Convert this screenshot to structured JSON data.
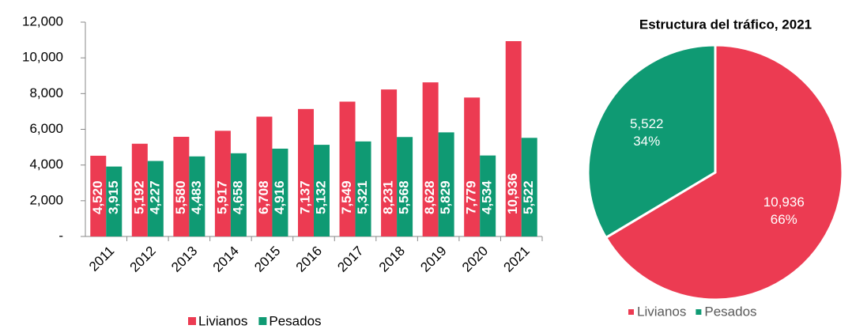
{
  "chart_data": [
    {
      "type": "bar",
      "categories": [
        "2011",
        "2012",
        "2013",
        "2014",
        "2015",
        "2016",
        "2017",
        "2018",
        "2019",
        "2020",
        "2021"
      ],
      "series": [
        {
          "name": "Livianos",
          "color": "#ec3b52",
          "values": [
            4520,
            5192,
            5580,
            5917,
            6708,
            7137,
            7549,
            8231,
            8628,
            7779,
            10936
          ],
          "value_labels": [
            "4,520",
            "5,192",
            "5,580",
            "5,917",
            "6,708",
            "7,137",
            "7,549",
            "8,231",
            "8,628",
            "7,779",
            "10,936"
          ]
        },
        {
          "name": "Pesados",
          "color": "#0f9a73",
          "values": [
            3915,
            4227,
            4483,
            4658,
            4916,
            5132,
            5321,
            5568,
            5829,
            4534,
            5522
          ],
          "value_labels": [
            "3,915",
            "4,227",
            "4,483",
            "4,658",
            "4,916",
            "5,132",
            "5,321",
            "5,568",
            "5,829",
            "4,534",
            "5,522"
          ]
        }
      ],
      "ylim": [
        0,
        12000
      ],
      "yticks": [
        {
          "value": 0,
          "label": "-"
        },
        {
          "value": 2000,
          "label": "2,000"
        },
        {
          "value": 4000,
          "label": "4,000"
        },
        {
          "value": 6000,
          "label": "6,000"
        },
        {
          "value": 8000,
          "label": "8,000"
        },
        {
          "value": 10000,
          "label": "10,000"
        },
        {
          "value": 12000,
          "label": "12,000"
        }
      ],
      "legend": "bottom"
    },
    {
      "type": "pie",
      "title": "Estructura del tráfico, 2021",
      "categories": [
        "Livianos",
        "Pesados"
      ],
      "values": [
        10936,
        5522
      ],
      "value_labels": [
        "10,936",
        "5,522"
      ],
      "percentages": [
        66,
        34
      ],
      "percentage_labels": [
        "66%",
        "34%"
      ],
      "colors": [
        "#ec3b52",
        "#0f9a73"
      ],
      "legend": "bottom"
    }
  ]
}
